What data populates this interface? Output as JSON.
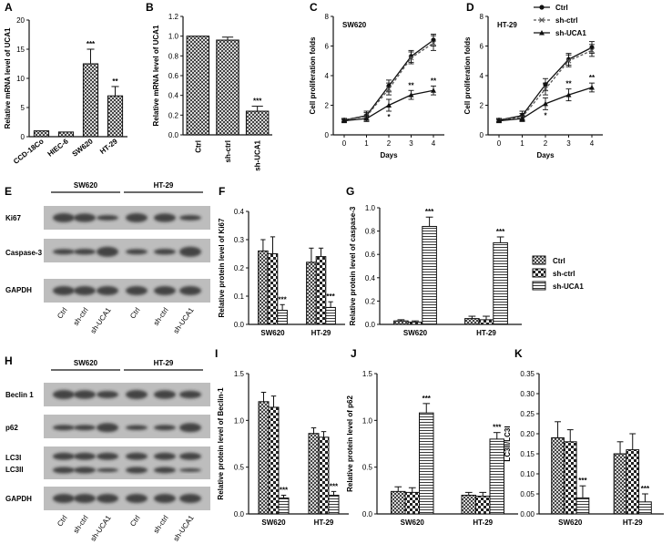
{
  "chart_data": [
    {
      "id": "A",
      "type": "bar",
      "categories": [
        "CCD-18Co",
        "HIEC-6",
        "SW620",
        "HT-29"
      ],
      "values": [
        1.0,
        0.8,
        12.5,
        7.0
      ],
      "errors": [
        0,
        0,
        2.5,
        1.6
      ],
      "annotations": [
        "",
        "",
        "***",
        "**"
      ],
      "ylabel": "Relative mRNA level of UCA1",
      "ylim": [
        0,
        20
      ],
      "yticks": [
        0,
        5,
        10,
        15,
        20
      ],
      "grid": false
    },
    {
      "id": "B",
      "type": "bar",
      "categories": [
        "Ctrl",
        "sh-ctrl",
        "sh-UCA1"
      ],
      "values": [
        1.0,
        0.96,
        0.24
      ],
      "errors": [
        0,
        0.03,
        0.05
      ],
      "annotations": [
        "",
        "",
        "***"
      ],
      "ylabel": "Relative mRNA level of UCA1",
      "ylim": [
        0,
        1.2
      ],
      "yticks": [
        0.0,
        0.2,
        0.4,
        0.6,
        0.8,
        1.0,
        1.2
      ],
      "grid": false
    },
    {
      "id": "C",
      "type": "line",
      "panel_title": "SW620",
      "x": [
        0,
        1,
        2,
        3,
        4
      ],
      "series": [
        {
          "name": "Ctrl",
          "values": [
            1.0,
            1.3,
            3.3,
            5.3,
            6.4
          ],
          "errors": [
            0.1,
            0.3,
            0.4,
            0.4,
            0.4
          ]
        },
        {
          "name": "sh-ctrl",
          "values": [
            1.0,
            1.25,
            3.1,
            5.2,
            6.2
          ],
          "errors": [
            0.1,
            0.25,
            0.4,
            0.4,
            0.5
          ]
        },
        {
          "name": "sh-UCA1",
          "values": [
            0.95,
            1.1,
            2.0,
            2.7,
            3.0
          ],
          "errors": [
            0.1,
            0.2,
            0.4,
            0.3,
            0.3
          ]
        }
      ],
      "annotations": [
        {
          "x": 2,
          "text": "*"
        },
        {
          "x": 3,
          "text": "**"
        },
        {
          "x": 4,
          "text": "**"
        }
      ],
      "xlabel": "Days",
      "ylabel": "Cell proliferation folds",
      "xlim": [
        0,
        4
      ],
      "ylim": [
        0,
        8
      ],
      "yticks": [
        0,
        2,
        4,
        6,
        8
      ],
      "grid": false
    },
    {
      "id": "D",
      "type": "line",
      "panel_title": "HT-29",
      "x": [
        0,
        1,
        2,
        3,
        4
      ],
      "series": [
        {
          "name": "Ctrl",
          "values": [
            1.0,
            1.3,
            3.4,
            5.1,
            5.9
          ],
          "errors": [
            0.1,
            0.3,
            0.4,
            0.4,
            0.4
          ]
        },
        {
          "name": "sh-ctrl",
          "values": [
            1.0,
            1.2,
            3.1,
            5.0,
            5.7
          ],
          "errors": [
            0.1,
            0.25,
            0.4,
            0.4,
            0.4
          ]
        },
        {
          "name": "sh-UCA1",
          "values": [
            0.95,
            1.1,
            2.1,
            2.7,
            3.2
          ],
          "errors": [
            0.1,
            0.2,
            0.4,
            0.4,
            0.3
          ]
        }
      ],
      "annotations": [
        {
          "x": 2,
          "text": "*"
        },
        {
          "x": 3,
          "text": "**"
        },
        {
          "x": 4,
          "text": "**"
        }
      ],
      "xlabel": "Days",
      "ylabel": "Cell proliferation folds",
      "xlim": [
        0,
        4
      ],
      "ylim": [
        0,
        8
      ],
      "yticks": [
        0,
        2,
        4,
        6,
        8
      ],
      "grid": false,
      "legend_position": "top-right"
    },
    {
      "id": "F",
      "type": "bar",
      "categories": [
        "SW620",
        "HT-29"
      ],
      "series": [
        {
          "name": "Ctrl",
          "values": [
            0.26,
            0.22
          ],
          "errors": [
            0.04,
            0.05
          ]
        },
        {
          "name": "sh-ctrl",
          "values": [
            0.25,
            0.24
          ],
          "errors": [
            0.06,
            0.03
          ]
        },
        {
          "name": "sh-UCA1",
          "values": [
            0.05,
            0.06
          ],
          "errors": [
            0.02,
            0.02
          ]
        }
      ],
      "annotations": [
        "***",
        "***"
      ],
      "ylabel": "Relative protein level of Ki67",
      "ylim": [
        0,
        0.4
      ],
      "yticks": [
        0.0,
        0.1,
        0.2,
        0.3,
        0.4
      ],
      "grid": false
    },
    {
      "id": "G",
      "type": "bar",
      "categories": [
        "SW620",
        "HT-29"
      ],
      "series": [
        {
          "name": "Ctrl",
          "values": [
            0.03,
            0.05
          ],
          "errors": [
            0.01,
            0.02
          ]
        },
        {
          "name": "sh-ctrl",
          "values": [
            0.02,
            0.04
          ],
          "errors": [
            0.01,
            0.03
          ]
        },
        {
          "name": "sh-UCA1",
          "values": [
            0.84,
            0.7
          ],
          "errors": [
            0.08,
            0.05
          ]
        }
      ],
      "annotations": [
        "***",
        "***"
      ],
      "ylabel": "Relative protein level of caspase-3",
      "ylim": [
        0,
        1.0
      ],
      "yticks": [
        0.0,
        0.2,
        0.4,
        0.6,
        0.8,
        1.0
      ],
      "grid": false,
      "legend_position": "right"
    },
    {
      "id": "I",
      "type": "bar",
      "categories": [
        "SW620",
        "HT-29"
      ],
      "series": [
        {
          "name": "Ctrl",
          "values": [
            1.2,
            0.86
          ],
          "errors": [
            0.1,
            0.06
          ]
        },
        {
          "name": "sh-ctrl",
          "values": [
            1.14,
            0.82
          ],
          "errors": [
            0.12,
            0.06
          ]
        },
        {
          "name": "sh-UCA1",
          "values": [
            0.17,
            0.2
          ],
          "errors": [
            0.03,
            0.04
          ]
        }
      ],
      "annotations": [
        "***",
        "***"
      ],
      "ylabel": "Relative protein level of Beclin-1",
      "ylim": [
        0,
        1.5
      ],
      "yticks": [
        0.0,
        0.5,
        1.0,
        1.5
      ],
      "grid": false
    },
    {
      "id": "J",
      "type": "bar",
      "categories": [
        "SW620",
        "HT-29"
      ],
      "series": [
        {
          "name": "Ctrl",
          "values": [
            0.24,
            0.2
          ],
          "errors": [
            0.05,
            0.03
          ]
        },
        {
          "name": "sh-ctrl",
          "values": [
            0.23,
            0.19
          ],
          "errors": [
            0.05,
            0.04
          ]
        },
        {
          "name": "sh-UCA1",
          "values": [
            1.08,
            0.8
          ],
          "errors": [
            0.1,
            0.07
          ]
        }
      ],
      "annotations": [
        "***",
        "***"
      ],
      "ylabel": "Relative protein level of p62",
      "ylim": [
        0,
        1.5
      ],
      "yticks": [
        0.0,
        0.5,
        1.0,
        1.5
      ],
      "grid": false
    },
    {
      "id": "K",
      "type": "bar",
      "categories": [
        "SW620",
        "HT-29"
      ],
      "series": [
        {
          "name": "Ctrl",
          "values": [
            0.19,
            0.15
          ],
          "errors": [
            0.04,
            0.03
          ]
        },
        {
          "name": "sh-ctrl",
          "values": [
            0.18,
            0.16
          ],
          "errors": [
            0.03,
            0.04
          ]
        },
        {
          "name": "sh-UCA1",
          "values": [
            0.04,
            0.03
          ],
          "errors": [
            0.03,
            0.02
          ]
        }
      ],
      "annotations": [
        "***",
        "***"
      ],
      "ylabel": "LC3II/LC3I",
      "ylim": [
        0,
        0.35
      ],
      "yticks": [
        0.0,
        0.05,
        0.1,
        0.15,
        0.2,
        0.25,
        0.3,
        0.35
      ],
      "grid": false
    }
  ],
  "legend_lines": [
    "Ctrl",
    "sh-ctrl",
    "sh-UCA1"
  ],
  "legend_bars": [
    "Ctrl",
    "sh-ctrl",
    "sh-UCA1"
  ],
  "blots": [
    {
      "id": "E",
      "groups": [
        "SW620",
        "HT-29"
      ],
      "rows": [
        "Ki67",
        "Caspase-3",
        "GAPDH"
      ],
      "lanes": [
        "Ctrl",
        "sh-ctrl",
        "sh-UCA1",
        "Ctrl",
        "sh-ctrl",
        "sh-UCA1"
      ]
    },
    {
      "id": "H",
      "groups": [
        "SW620",
        "HT-29"
      ],
      "rows": [
        "Beclin 1",
        "p62",
        "LC3I",
        "LC3II",
        "GAPDH"
      ],
      "lanes": [
        "Ctrl",
        "sh-ctrl",
        "sh-UCA1",
        "Ctrl",
        "sh-ctrl",
        "sh-UCA1"
      ]
    }
  ],
  "colors": {
    "ink": "#111111",
    "bar_fill": "#ffffff",
    "band_bg": "#bdbdbd",
    "band": "#2e2e2e"
  }
}
